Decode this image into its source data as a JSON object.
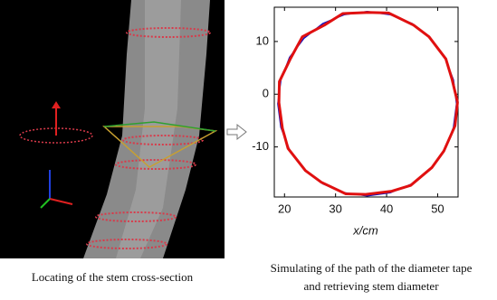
{
  "figure": {
    "left_caption": "Locating of the stem cross-section",
    "right_caption": [
      "Simulating of the path of the diameter tape",
      "and retrieving stem diameter"
    ]
  },
  "chart_data": {
    "type": "line",
    "x_label": "x/cm",
    "xlim": [
      18,
      54
    ],
    "ylim": [
      -19.5,
      16.5
    ],
    "xticks": [
      20,
      30,
      40,
      50
    ],
    "yticks": [
      -10,
      0,
      10
    ],
    "series": [
      {
        "color": "#1010c0",
        "width": 1.5,
        "x": [
          53.7,
          53.1,
          51.4,
          48.6,
          45.0,
          40.7,
          36.2,
          31.7,
          27.5,
          23.8,
          21.0,
          19.3,
          18.7,
          19.3,
          21.0,
          23.8,
          27.5,
          31.7,
          36.2,
          40.7,
          45.0,
          48.6,
          51.4,
          53.1,
          53.7
        ],
        "values": [
          -1.8,
          2.7,
          7.0,
          10.6,
          13.4,
          15.1,
          15.7,
          15.1,
          13.4,
          10.6,
          7.0,
          2.7,
          -1.8,
          -6.3,
          -10.6,
          -14.2,
          -17.0,
          -18.7,
          -19.3,
          -18.7,
          -17.0,
          -14.2,
          -10.6,
          -6.3,
          -1.8
        ]
      },
      {
        "color": "#e01010",
        "width": 3,
        "x": [
          53.9,
          52.8,
          51.6,
          48.3,
          45.3,
          40.4,
          36.5,
          31.4,
          27.8,
          23.5,
          21.2,
          19.0,
          18.9,
          19.6,
          20.7,
          24.1,
          27.2,
          32.0,
          35.9,
          41.0,
          44.7,
          48.9,
          51.2,
          53.4,
          53.9
        ],
        "values": [
          -1.5,
          2.9,
          6.7,
          10.9,
          13.1,
          15.4,
          15.5,
          15.3,
          13.1,
          10.9,
          6.8,
          2.4,
          -1.6,
          -6.5,
          -10.3,
          -14.5,
          -16.7,
          -18.9,
          -19.0,
          -18.4,
          -17.3,
          -13.9,
          -10.8,
          -6.0,
          -1.5
        ]
      }
    ]
  }
}
